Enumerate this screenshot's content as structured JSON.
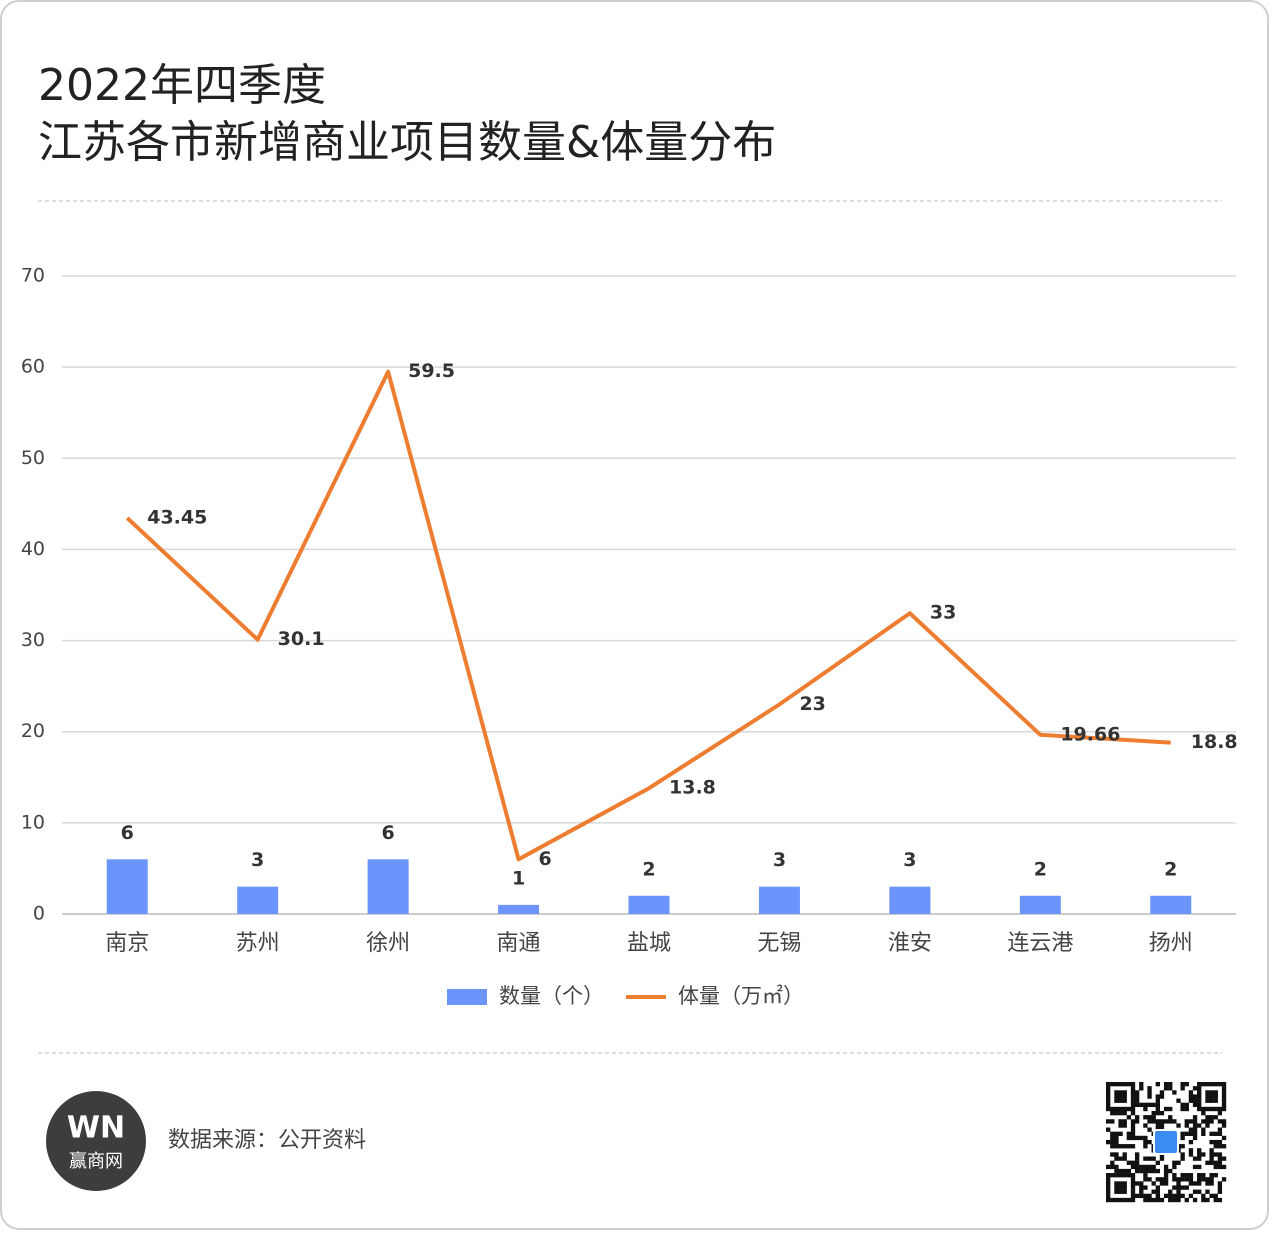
{
  "chart_data": {
    "type": "bar",
    "title": [
      "2022年四季度",
      "江苏各市新增商业项目数量&体量分布"
    ],
    "categories": [
      "南京",
      "苏州",
      "徐州",
      "南通",
      "盐城",
      "无锡",
      "淮安",
      "连云港",
      "扬州"
    ],
    "series": [
      {
        "name": "数量（个）",
        "type": "bar",
        "color": "#6b95fa",
        "values": [
          6,
          3,
          6,
          1,
          2,
          3,
          3,
          2,
          2
        ]
      },
      {
        "name": "体量（万㎡）",
        "type": "line",
        "color": "#ed7d31",
        "values": [
          43.45,
          30.1,
          59.5,
          6,
          13.8,
          23,
          33,
          19.66,
          18.8
        ]
      }
    ],
    "ylim": [
      0,
      70
    ],
    "yticks": [
      0,
      10,
      20,
      30,
      40,
      50,
      60,
      70
    ],
    "grid": true,
    "legend": "bottom"
  },
  "footer": {
    "source": "数据来源：公开资料",
    "brand": "赢商网",
    "brand_mark": "WN"
  }
}
